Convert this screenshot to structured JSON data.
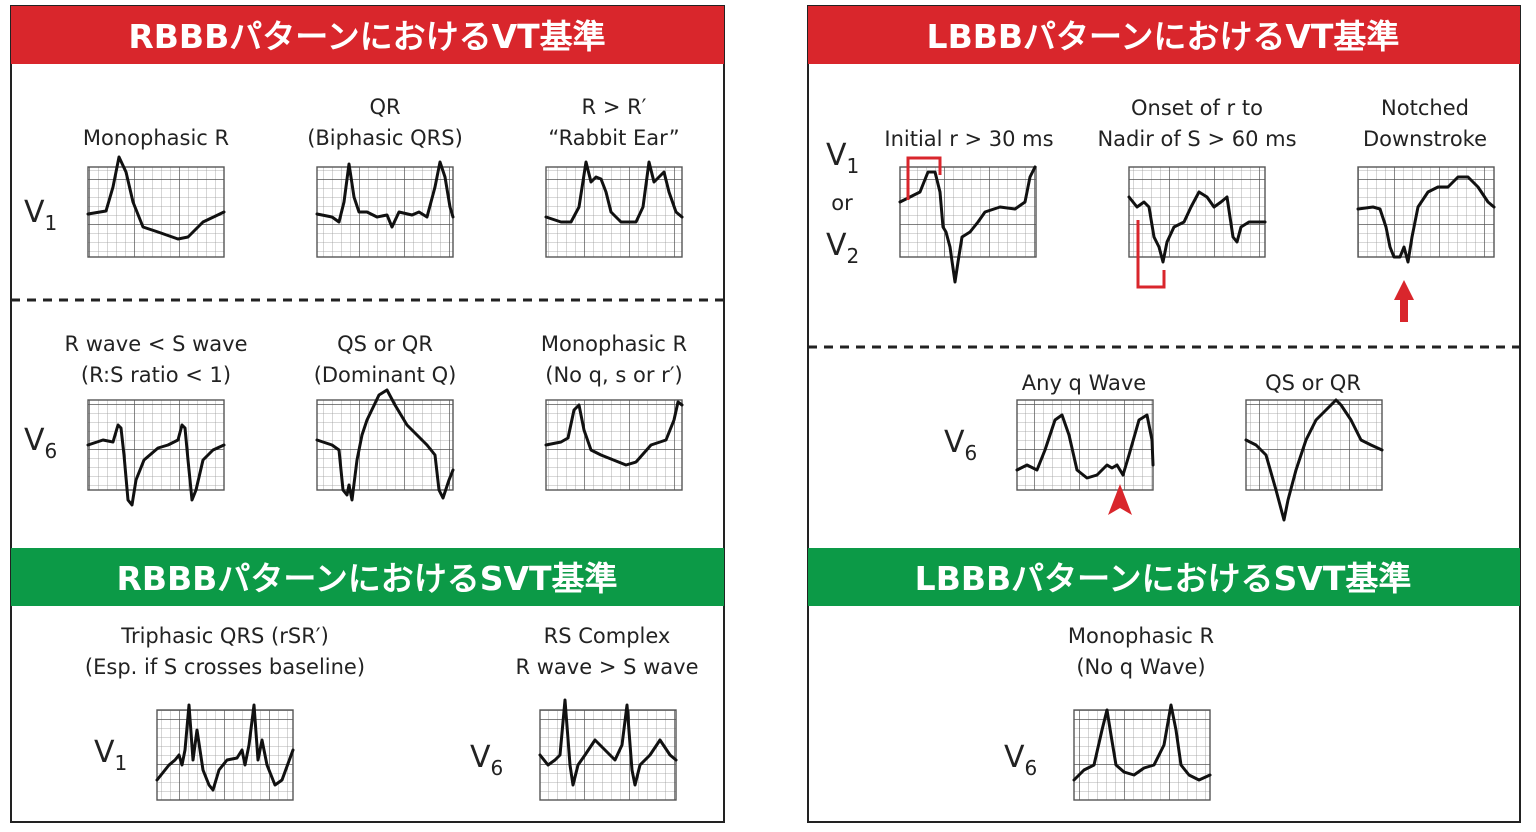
{
  "rbbb_vt": {
    "title": "RBBBパターンにおけるVT基準",
    "v1_lead": {
      "main": "V",
      "sub": "1"
    },
    "v1_criteria": [
      [
        "Monophasic R"
      ],
      [
        "QR",
        "(Biphasic QRS)"
      ],
      [
        "R > R′",
        "“Rabbit Ear”"
      ]
    ],
    "v6_lead": {
      "main": "V",
      "sub": "6"
    },
    "v6_criteria": [
      [
        "R wave < S wave",
        "(R:S ratio < 1)"
      ],
      [
        "QS or QR",
        "(Dominant Q)"
      ],
      [
        "Monophasic R",
        "(No q, s or r′)"
      ]
    ]
  },
  "rbbb_svt": {
    "title": "RBBBパターンにおけるSVT基準",
    "criteria": [
      {
        "lead": {
          "main": "V",
          "sub": "1"
        },
        "lines": [
          "Triphasic QRS (rSR′)",
          "(Esp. if S crosses baseline)"
        ]
      },
      {
        "lead": {
          "main": "V",
          "sub": "6"
        },
        "lines": [
          "RS Complex",
          "R wave > S wave"
        ]
      }
    ]
  },
  "lbbb_vt": {
    "title": "LBBBパターンにおけるVT基準",
    "v1_v2_lead": {
      "first": {
        "main": "V",
        "sub": "1"
      },
      "or": "or",
      "second": {
        "main": "V",
        "sub": "2"
      }
    },
    "v1_v2_criteria": [
      [
        "Initial r > 30 ms"
      ],
      [
        "Onset of r to",
        "Nadir of S > 60 ms"
      ],
      [
        "Notched",
        "Downstroke"
      ]
    ],
    "v6_lead": {
      "main": "V",
      "sub": "6"
    },
    "v6_criteria": [
      [
        "Any q Wave"
      ],
      [
        "QS or QR"
      ]
    ]
  },
  "lbbb_svt": {
    "title": "LBBBパターンにおけるSVT基準",
    "lead": {
      "main": "V",
      "sub": "6"
    },
    "lines": [
      "Monophasic R",
      "(No q Wave)"
    ]
  }
}
